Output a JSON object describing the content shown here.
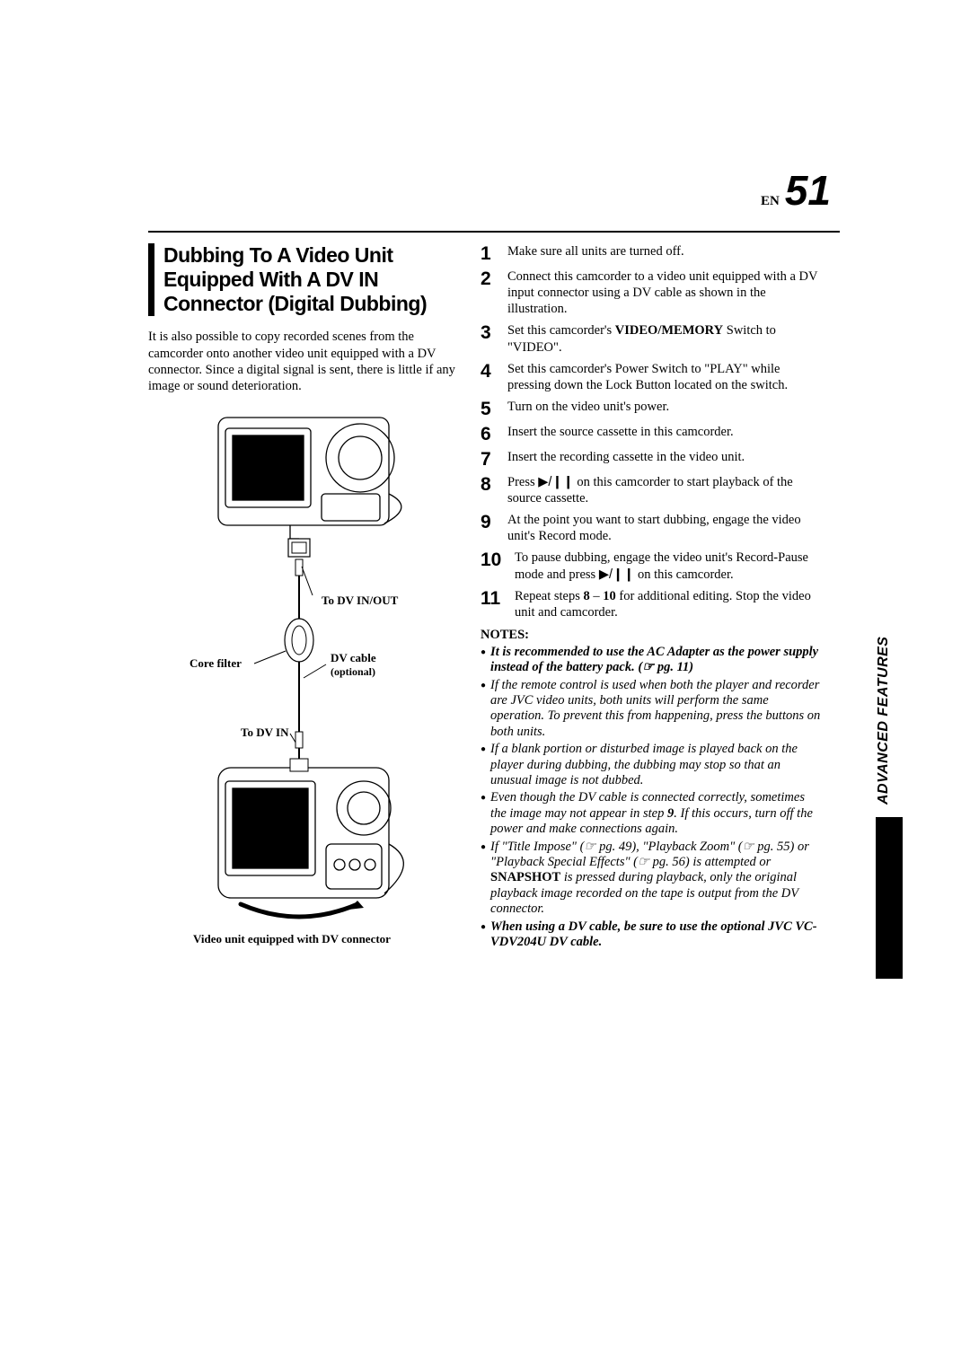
{
  "header": {
    "lang_label": "EN",
    "page_number": "51"
  },
  "title": "Dubbing To A Video Unit Equipped With A DV IN Connector (Digital Dubbing)",
  "intro": "It is also possible to copy recorded scenes from the camcorder onto another video unit equipped with a DV connector. Since a digital signal is sent, there is little if any image or sound deterioration.",
  "diagram": {
    "label_dv_inout": "To DV IN/OUT",
    "label_core_filter": "Core filter",
    "label_dv_cable": "DV cable",
    "label_dv_cable_sub": "(optional)",
    "label_to_dv_in": "To DV IN",
    "label_bottom": "Video unit equipped with DV connector"
  },
  "steps": [
    {
      "n": "1",
      "text": "Make sure all units are turned off."
    },
    {
      "n": "2",
      "text": "Connect this camcorder to a video unit equipped with a DV input connector using a DV cable as shown in the illustration."
    },
    {
      "n": "3",
      "pre": "Set this camcorder's ",
      "bold": "VIDEO/MEMORY",
      "post": " Switch to \"VIDEO\"."
    },
    {
      "n": "4",
      "text": "Set this camcorder's Power Switch to \"PLAY\" while pressing down the Lock Button located on the switch."
    },
    {
      "n": "5",
      "text": "Turn on the video unit's power."
    },
    {
      "n": "6",
      "text": "Insert the source cassette in this camcorder."
    },
    {
      "n": "7",
      "text": "Insert the recording cassette in the video unit."
    },
    {
      "n": "8",
      "pre": "Press ",
      "icon": "▶/❙❙",
      "post": " on this camcorder to start playback of the source cassette."
    },
    {
      "n": "9",
      "text": "At the point you want to start dubbing, engage the video unit's Record mode."
    },
    {
      "n": "10",
      "pre": "To pause dubbing, engage the video unit's Record-Pause mode and press ",
      "icon": "▶/❙❙",
      "post": " on this camcorder."
    },
    {
      "n": "11",
      "pre": "Repeat steps ",
      "bold": "8",
      "mid": " – ",
      "bold2": "10",
      "post": " for additional editing. Stop the video unit and camcorder."
    }
  ],
  "notes_header": "NOTES:",
  "notes": [
    {
      "bold": true,
      "text": "It is recommended to use the AC Adapter as the power supply instead of the battery pack. (☞ pg. 11)"
    },
    {
      "text": "If the remote control is used when both the player and recorder are JVC video units, both units will perform the same operation. To prevent this from happening, press the buttons on both units."
    },
    {
      "text": "If a blank portion or disturbed image is played back on the player during dubbing, the dubbing may stop so that an unusual image is not dubbed."
    },
    {
      "text_parts": [
        "Even though the DV cable is connected correctly, sometimes the image may not appear in step ",
        {
          "b": "9"
        },
        ". If this occurs, turn off the power and make connections again."
      ]
    },
    {
      "text_parts": [
        "If \"Title Impose\" (☞ pg. 49), \"Playback Zoom\" (☞ pg. 55) or \"Playback Special Effects\" (☞ pg. 56) is attempted or ",
        {
          "bup": "SNAPSHOT"
        },
        " is pressed during playback, only the original playback image recorded on the tape is output from the DV connector."
      ]
    },
    {
      "bold": true,
      "text": "When using a DV cable, be sure to use the optional JVC VC-VDV204U DV cable."
    }
  ],
  "side_tab": "ADVANCED FEATURES"
}
